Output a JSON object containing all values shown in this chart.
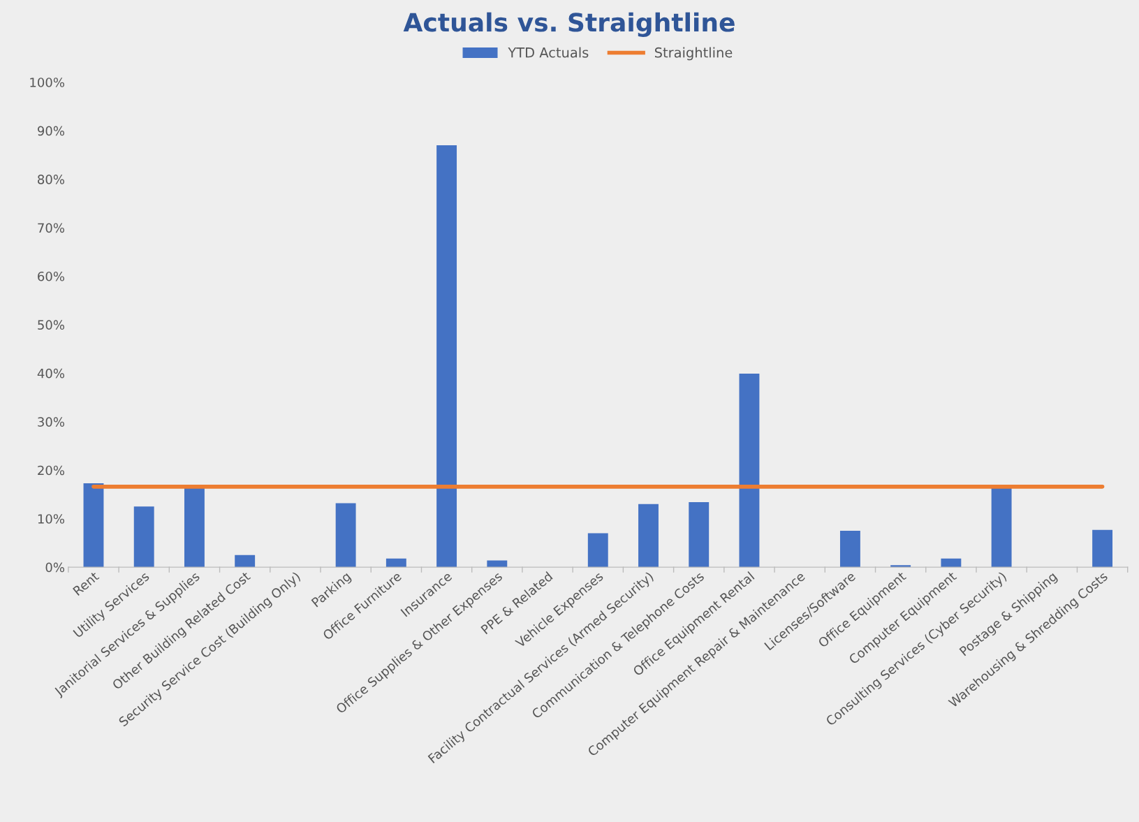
{
  "chart_data": {
    "type": "bar",
    "title": "Actuals vs. Straightline",
    "categories": [
      "Rent",
      "Utility Services",
      "Janitorial Services & Supplies",
      "Other Building Related Cost",
      "Security Service Cost (Building Only)",
      "Parking",
      "Office Furniture",
      "Insurance",
      "Office Supplies & Other Expenses",
      "PPE & Related",
      "Vehicle Expenses",
      "Facility Contractual Services (Armed Security)",
      "Communication & Telephone Costs",
      "Office Equipment Rental",
      "Computer Equipment Repair & Maintenance",
      "Licenses/Software",
      "Office Equipment",
      "Computer Equipment",
      "Consulting Services (Cyber Security)",
      "Postage & Shipping",
      "Warehousing & Shredding Costs"
    ],
    "series": [
      {
        "name": "YTD Actuals",
        "color": "#4472c4",
        "values": [
          17.3,
          12.5,
          16.4,
          2.5,
          0,
          13.2,
          1.8,
          87.0,
          1.4,
          0,
          7.0,
          13.0,
          13.4,
          39.9,
          0,
          7.5,
          0.4,
          1.8,
          16.4,
          0,
          7.7
        ]
      },
      {
        "name": "Straightline",
        "type": "line",
        "color": "#ed7d31",
        "values": [
          16.6,
          16.6,
          16.6,
          16.6,
          16.6,
          16.6,
          16.6,
          16.6,
          16.6,
          16.6,
          16.6,
          16.6,
          16.6,
          16.6,
          16.6,
          16.6,
          16.6,
          16.6,
          16.6,
          16.6,
          16.6
        ]
      }
    ],
    "ylim": [
      0,
      100
    ],
    "yticks": [
      {
        "value": 0,
        "label": "0%"
      },
      {
        "value": 10,
        "label": "10%"
      },
      {
        "value": 20,
        "label": "20%"
      },
      {
        "value": 30,
        "label": "30%"
      },
      {
        "value": 40,
        "label": "40%"
      },
      {
        "value": 50,
        "label": "50%"
      },
      {
        "value": 60,
        "label": "60%"
      },
      {
        "value": 70,
        "label": "70%"
      },
      {
        "value": 80,
        "label": "80%"
      },
      {
        "value": 90,
        "label": "90%"
      },
      {
        "value": 100,
        "label": "100%"
      }
    ],
    "grid": false,
    "legend": "top"
  }
}
